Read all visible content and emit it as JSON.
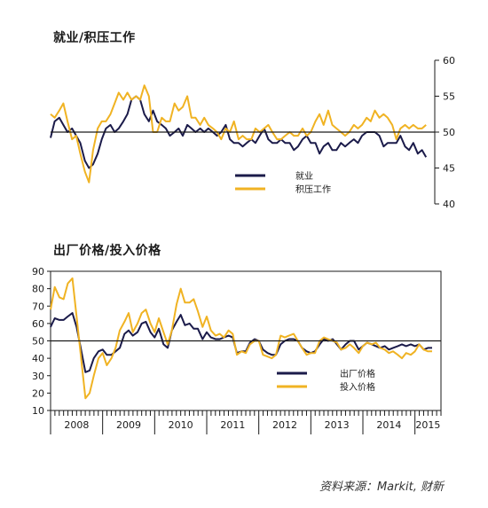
{
  "source": "资料来源：Markit, 财新",
  "chart_data": [
    {
      "type": "line",
      "title": "就业/积压工作",
      "ylim": [
        40,
        60
      ],
      "yticks": [
        40,
        45,
        50,
        55,
        60
      ],
      "y_axis_side": "right",
      "reference_line": 50,
      "legend": {
        "placement": "center"
      },
      "series": [
        {
          "name": "就业",
          "color": "#1b1b4a",
          "x": [
            2008.0,
            2008.08,
            2008.17,
            2008.25,
            2008.33,
            2008.42,
            2008.5,
            2008.58,
            2008.67,
            2008.75,
            2008.83,
            2008.92,
            2009.0,
            2009.08,
            2009.17,
            2009.25,
            2009.33,
            2009.42,
            2009.5,
            2009.58,
            2009.67,
            2009.75,
            2009.83,
            2009.92,
            2010.0,
            2010.08,
            2010.17,
            2010.25,
            2010.33,
            2010.42,
            2010.5,
            2010.58,
            2010.67,
            2010.75,
            2010.83,
            2010.92,
            2011.0,
            2011.08,
            2011.17,
            2011.25,
            2011.33,
            2011.42,
            2011.5,
            2011.58,
            2011.67,
            2011.75,
            2011.83,
            2011.92,
            2012.0,
            2012.08,
            2012.17,
            2012.25,
            2012.33,
            2012.42,
            2012.5,
            2012.58,
            2012.67,
            2012.75,
            2012.83,
            2012.92,
            2013.0,
            2013.08,
            2013.17,
            2013.25,
            2013.33,
            2013.42,
            2013.5,
            2013.58,
            2013.67,
            2013.75,
            2013.83,
            2013.92,
            2014.0,
            2014.08,
            2014.17,
            2014.25,
            2014.33,
            2014.42,
            2014.5,
            2014.58,
            2014.67,
            2014.75,
            2014.83,
            2014.92,
            2015.0,
            2015.08,
            2015.17,
            2015.25,
            2015.33
          ],
          "values": [
            49.2,
            51.5,
            52.0,
            51.0,
            50.0,
            50.5,
            49.5,
            48.5,
            46.0,
            45.0,
            45.5,
            47.0,
            49.0,
            50.5,
            51.0,
            50.0,
            50.5,
            51.5,
            52.5,
            54.5,
            55.0,
            54.5,
            52.5,
            51.5,
            53.0,
            51.5,
            51.0,
            50.5,
            49.5,
            50.0,
            50.5,
            49.5,
            51.0,
            50.5,
            50.0,
            50.5,
            50.0,
            50.5,
            50.0,
            49.5,
            50.0,
            51.0,
            49.0,
            48.5,
            48.5,
            48.0,
            48.5,
            49.0,
            48.5,
            49.5,
            50.5,
            49.0,
            48.5,
            48.5,
            49.0,
            48.5,
            48.5,
            47.5,
            48.0,
            49.0,
            49.5,
            48.5,
            48.5,
            47.0,
            48.0,
            48.5,
            47.5,
            47.5,
            48.5,
            48.0,
            48.5,
            49.0,
            48.5,
            49.5,
            50.0,
            50.0,
            50.0,
            49.5,
            48.0,
            48.5,
            48.5,
            48.5,
            49.5,
            48.0,
            47.5,
            48.5,
            47.0,
            47.5,
            46.5
          ]
        },
        {
          "name": "积压工作",
          "color": "#f0b323",
          "x": [
            2008.0,
            2008.08,
            2008.17,
            2008.25,
            2008.33,
            2008.42,
            2008.5,
            2008.58,
            2008.67,
            2008.75,
            2008.83,
            2008.92,
            2009.0,
            2009.08,
            2009.17,
            2009.25,
            2009.33,
            2009.42,
            2009.5,
            2009.58,
            2009.67,
            2009.75,
            2009.83,
            2009.92,
            2010.0,
            2010.08,
            2010.17,
            2010.25,
            2010.33,
            2010.42,
            2010.5,
            2010.58,
            2010.67,
            2010.75,
            2010.83,
            2010.92,
            2011.0,
            2011.08,
            2011.17,
            2011.25,
            2011.33,
            2011.42,
            2011.5,
            2011.58,
            2011.67,
            2011.75,
            2011.83,
            2011.92,
            2012.0,
            2012.08,
            2012.17,
            2012.25,
            2012.33,
            2012.42,
            2012.5,
            2012.58,
            2012.67,
            2012.75,
            2012.83,
            2012.92,
            2013.0,
            2013.08,
            2013.17,
            2013.25,
            2013.33,
            2013.42,
            2013.5,
            2013.58,
            2013.67,
            2013.75,
            2013.83,
            2013.92,
            2014.0,
            2014.08,
            2014.17,
            2014.25,
            2014.33,
            2014.42,
            2014.5,
            2014.58,
            2014.67,
            2014.75,
            2014.83,
            2014.92,
            2015.0,
            2015.08,
            2015.17,
            2015.25,
            2015.33
          ],
          "values": [
            52.5,
            52.0,
            53.0,
            54.0,
            51.5,
            49.0,
            49.5,
            47.0,
            44.5,
            43.0,
            47.5,
            50.5,
            51.5,
            51.5,
            52.5,
            54.0,
            55.5,
            54.5,
            55.5,
            54.5,
            55.0,
            54.5,
            56.5,
            55.0,
            50.0,
            50.0,
            52.0,
            51.5,
            51.5,
            54.0,
            53.0,
            53.5,
            55.0,
            52.0,
            52.0,
            51.0,
            52.0,
            51.0,
            50.5,
            50.0,
            49.0,
            50.5,
            50.0,
            51.5,
            49.0,
            49.5,
            49.0,
            49.0,
            50.5,
            50.0,
            50.5,
            51.0,
            50.0,
            49.0,
            49.0,
            49.5,
            50.0,
            49.5,
            49.5,
            50.5,
            49.5,
            50.0,
            51.5,
            52.5,
            51.0,
            53.0,
            51.0,
            50.5,
            50.0,
            49.5,
            50.0,
            51.0,
            50.5,
            51.0,
            52.0,
            51.5,
            53.0,
            52.0,
            52.5,
            52.0,
            51.0,
            49.0,
            50.5,
            51.0,
            50.5,
            51.0,
            50.5,
            50.5,
            51.0
          ]
        }
      ]
    },
    {
      "type": "line",
      "title": "出厂价格/投入价格",
      "ylim": [
        10,
        90
      ],
      "yticks": [
        10,
        20,
        30,
        40,
        50,
        60,
        70,
        80,
        90
      ],
      "y_axis_side": "left",
      "reference_line": 50,
      "x_labels": [
        "2008",
        "2009",
        "2010",
        "2011",
        "2012",
        "2013",
        "2014",
        "2015"
      ],
      "legend": {
        "placement": "bottom-right"
      },
      "series": [
        {
          "name": "出厂价格",
          "color": "#1b1b4a",
          "x": [
            2008.0,
            2008.08,
            2008.17,
            2008.25,
            2008.33,
            2008.42,
            2008.5,
            2008.58,
            2008.67,
            2008.75,
            2008.83,
            2008.92,
            2009.0,
            2009.08,
            2009.17,
            2009.25,
            2009.33,
            2009.42,
            2009.5,
            2009.58,
            2009.67,
            2009.75,
            2009.83,
            2009.92,
            2010.0,
            2010.08,
            2010.17,
            2010.25,
            2010.33,
            2010.42,
            2010.5,
            2010.58,
            2010.67,
            2010.75,
            2010.83,
            2010.92,
            2011.0,
            2011.08,
            2011.17,
            2011.25,
            2011.33,
            2011.42,
            2011.5,
            2011.58,
            2011.67,
            2011.75,
            2011.83,
            2011.92,
            2012.0,
            2012.08,
            2012.17,
            2012.25,
            2012.33,
            2012.42,
            2012.5,
            2012.58,
            2012.67,
            2012.75,
            2012.83,
            2012.92,
            2013.0,
            2013.08,
            2013.17,
            2013.25,
            2013.33,
            2013.42,
            2013.5,
            2013.58,
            2013.67,
            2013.75,
            2013.83,
            2013.92,
            2014.0,
            2014.08,
            2014.17,
            2014.25,
            2014.33,
            2014.42,
            2014.5,
            2014.58,
            2014.67,
            2014.75,
            2014.83,
            2014.92,
            2015.0,
            2015.08,
            2015.17,
            2015.25,
            2015.33
          ],
          "values": [
            58,
            63,
            62,
            62,
            64,
            66,
            58,
            46,
            32,
            33,
            40,
            44,
            45,
            42,
            42,
            44,
            46,
            54,
            56,
            53,
            55,
            60,
            61,
            55,
            52,
            57,
            48,
            46,
            56,
            61,
            65,
            59,
            60,
            57,
            57,
            51,
            55,
            52,
            51,
            51,
            52,
            53,
            52,
            43,
            44,
            44,
            49,
            51,
            50,
            45,
            43,
            42,
            42,
            48,
            50,
            51,
            51,
            50,
            46,
            44,
            43,
            44,
            48,
            51,
            50,
            51,
            48,
            45,
            48,
            50,
            50,
            45,
            47,
            49,
            48,
            47,
            46,
            47,
            45,
            46,
            47,
            48,
            47,
            48,
            47,
            48,
            45,
            46,
            46
          ]
        },
        {
          "name": "投入价格",
          "color": "#f0b323",
          "x": [
            2008.0,
            2008.08,
            2008.17,
            2008.25,
            2008.33,
            2008.42,
            2008.5,
            2008.58,
            2008.67,
            2008.75,
            2008.83,
            2008.92,
            2009.0,
            2009.08,
            2009.17,
            2009.25,
            2009.33,
            2009.42,
            2009.5,
            2009.58,
            2009.67,
            2009.75,
            2009.83,
            2009.92,
            2010.0,
            2010.08,
            2010.17,
            2010.25,
            2010.33,
            2010.42,
            2010.5,
            2010.58,
            2010.67,
            2010.75,
            2010.83,
            2010.92,
            2011.0,
            2011.08,
            2011.17,
            2011.25,
            2011.33,
            2011.42,
            2011.5,
            2011.58,
            2011.67,
            2011.75,
            2011.83,
            2011.92,
            2012.0,
            2012.08,
            2012.17,
            2012.25,
            2012.33,
            2012.42,
            2012.5,
            2012.58,
            2012.67,
            2012.75,
            2012.83,
            2012.92,
            2013.0,
            2013.08,
            2013.17,
            2013.25,
            2013.33,
            2013.42,
            2013.5,
            2013.58,
            2013.67,
            2013.75,
            2013.83,
            2013.92,
            2014.0,
            2014.08,
            2014.17,
            2014.25,
            2014.33,
            2014.42,
            2014.5,
            2014.58,
            2014.67,
            2014.75,
            2014.83,
            2014.92,
            2015.0,
            2015.08,
            2015.17,
            2015.25,
            2015.33
          ],
          "values": [
            68,
            81,
            75,
            74,
            83,
            86,
            64,
            42,
            17,
            20,
            30,
            40,
            43,
            36,
            40,
            46,
            56,
            61,
            66,
            55,
            60,
            66,
            68,
            60,
            55,
            63,
            55,
            48,
            56,
            71,
            80,
            72,
            72,
            74,
            67,
            58,
            64,
            56,
            53,
            54,
            52,
            56,
            54,
            42,
            44,
            43,
            48,
            50,
            50,
            42,
            41,
            40,
            42,
            53,
            52,
            53,
            54,
            50,
            46,
            42,
            43,
            43,
            50,
            52,
            51,
            50,
            49,
            45,
            46,
            48,
            46,
            43,
            47,
            49,
            48,
            49,
            46,
            45,
            43,
            44,
            42,
            40,
            43,
            42,
            44,
            48,
            45,
            44,
            44
          ]
        }
      ]
    }
  ]
}
